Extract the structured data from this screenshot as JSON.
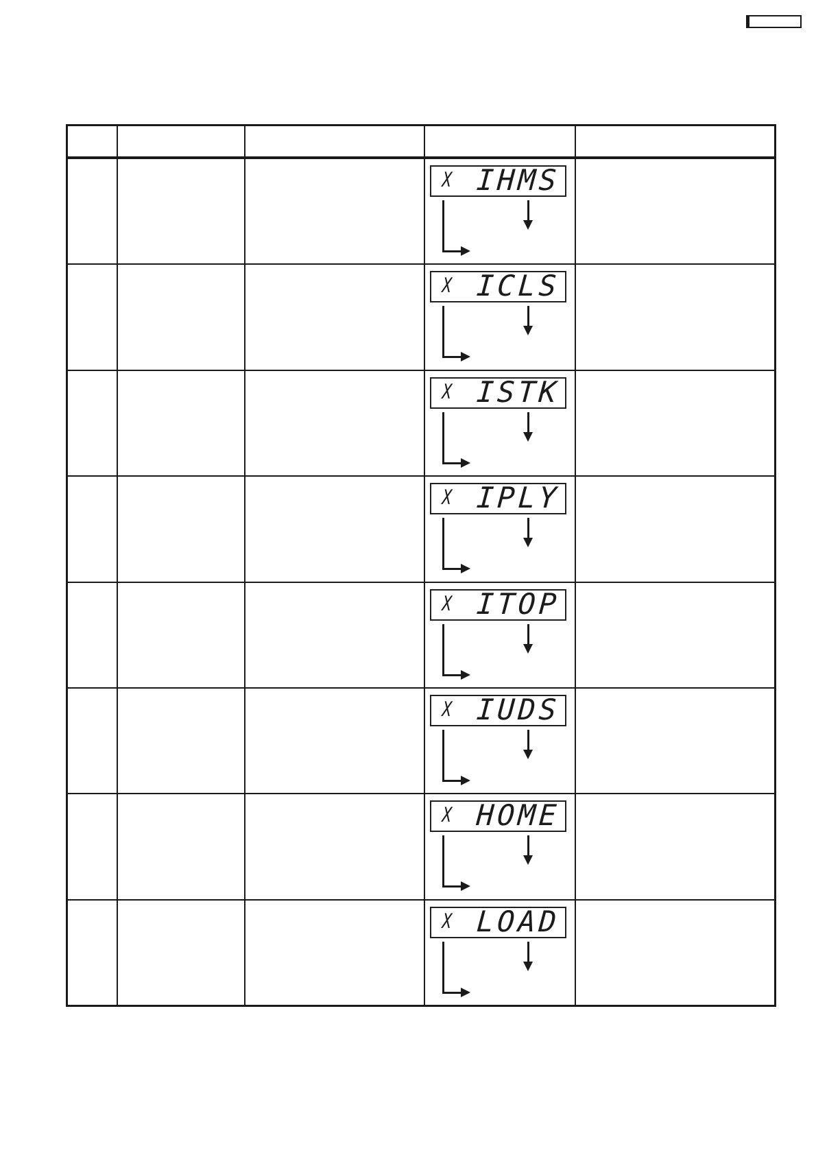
{
  "document": {
    "background": "#ffffff",
    "ink_color": "#1a1a1a"
  },
  "corner_label_box": {
    "text": ""
  },
  "table": {
    "header_cells": [
      "",
      "",
      "",
      "",
      ""
    ],
    "rows": [
      {
        "lcd_text": "IHMS"
      },
      {
        "lcd_text": "ICLS"
      },
      {
        "lcd_text": "ISTK"
      },
      {
        "lcd_text": "IPLY"
      },
      {
        "lcd_text": "ITOP"
      },
      {
        "lcd_text": "IUDS"
      },
      {
        "lcd_text": "HOME"
      },
      {
        "lcd_text": "LOAD"
      }
    ]
  },
  "lcd": {
    "indicator": "X"
  },
  "icons": {
    "down_arrow_icon": "↓",
    "branch_arrow_icon": "↳"
  }
}
